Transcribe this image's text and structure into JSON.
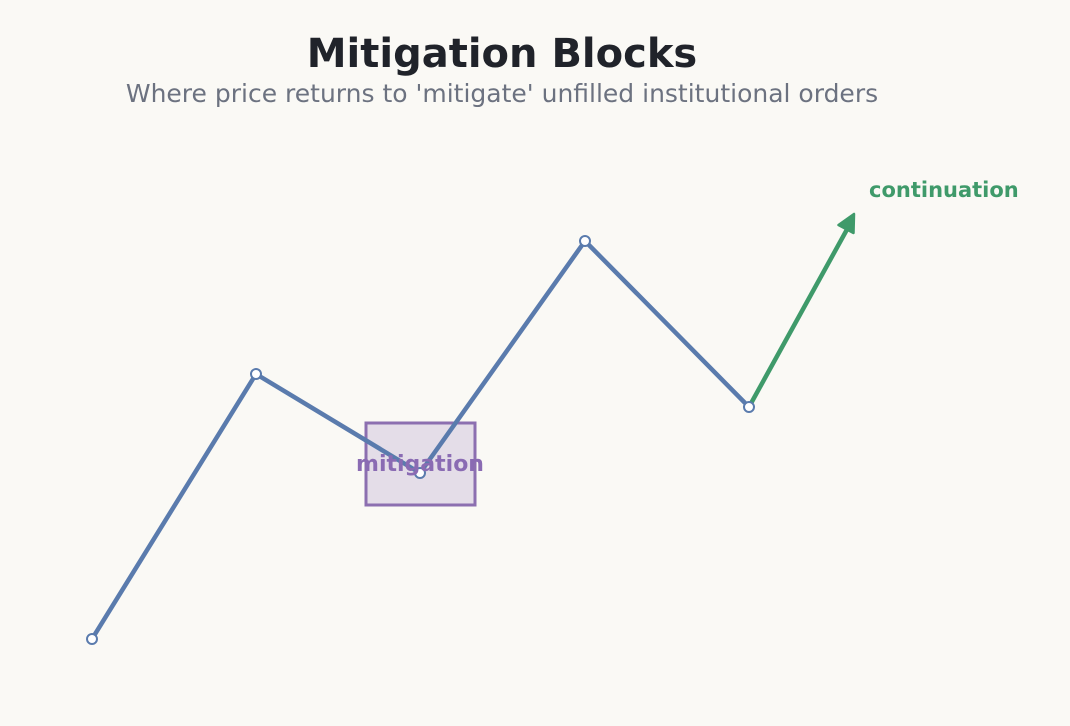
{
  "title": "Mitigation Blocks",
  "subtitle": "Where price returns to 'mitigate' unfilled institutional orders",
  "labels": {
    "mitigation": "mitigation",
    "continuation": "continuation"
  },
  "colors": {
    "background": "#faf9f5",
    "price_line": "#5a7bad",
    "point_fill": "#ffffff",
    "mitigation_box_fill": "#e4dde8",
    "mitigation_box_stroke": "#8c6fb0",
    "mitigation_label": "#8a6bb3",
    "continuation": "#3f9a6a",
    "title": "#20232a",
    "subtitle": "#6c7280"
  }
}
